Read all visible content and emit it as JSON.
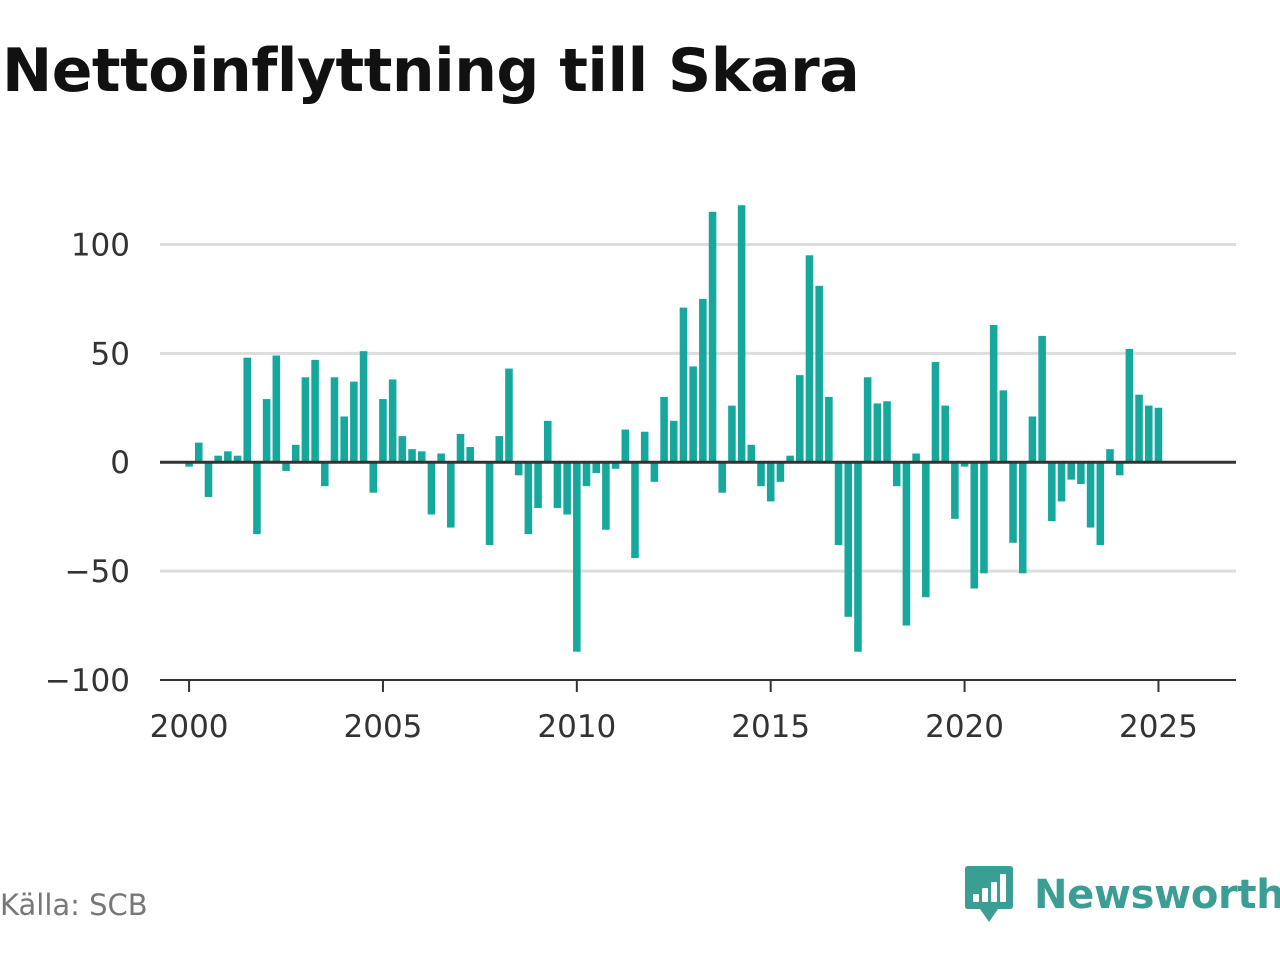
{
  "title": "Nettoinflyttning till Skara",
  "source": "Källa: SCB",
  "brand": {
    "name": "Newsworthy",
    "icon": "newsworthy-logo-icon",
    "color": "#3a9e94"
  },
  "colors": {
    "bar": "#16a89d",
    "zero_line": "#333333",
    "grid": "#dddddd",
    "text": "#333333"
  },
  "chart_data": {
    "type": "bar",
    "title": "Nettoinflyttning till Skara",
    "xlabel": "",
    "ylabel": "",
    "x_ticks": [
      "2000",
      "2005",
      "2010",
      "2015",
      "2020",
      "2025"
    ],
    "y_ticks": [
      "100",
      "50",
      "0",
      "−50",
      "−100"
    ],
    "ylim": [
      -100,
      125
    ],
    "xlim": [
      1999.25,
      2027.0
    ],
    "grid": true,
    "x_start": 2000.0,
    "x_step": 0.25,
    "values": [
      -2,
      9,
      -16,
      3,
      5,
      3,
      48,
      -33,
      29,
      49,
      -4,
      8,
      39,
      47,
      -11,
      39,
      21,
      37,
      51,
      -14,
      29,
      38,
      12,
      6,
      5,
      -24,
      4,
      -30,
      13,
      7,
      0,
      -38,
      12,
      43,
      -6,
      -33,
      -21,
      19,
      -21,
      -24,
      -87,
      -11,
      -5,
      -31,
      -3,
      15,
      -44,
      14,
      -9,
      30,
      19,
      71,
      44,
      75,
      115,
      -14,
      26,
      118,
      8,
      -11,
      -18,
      -9,
      3,
      40,
      95,
      81,
      30,
      -38,
      -71,
      -87,
      39,
      27,
      28,
      -11,
      -75,
      4,
      -62,
      46,
      26,
      -26,
      -2,
      -58,
      -51,
      63,
      33,
      -37,
      -51,
      21,
      58,
      -27,
      -18,
      -8,
      -10,
      -30,
      -38,
      6,
      -6,
      52,
      31,
      26,
      25
    ]
  }
}
